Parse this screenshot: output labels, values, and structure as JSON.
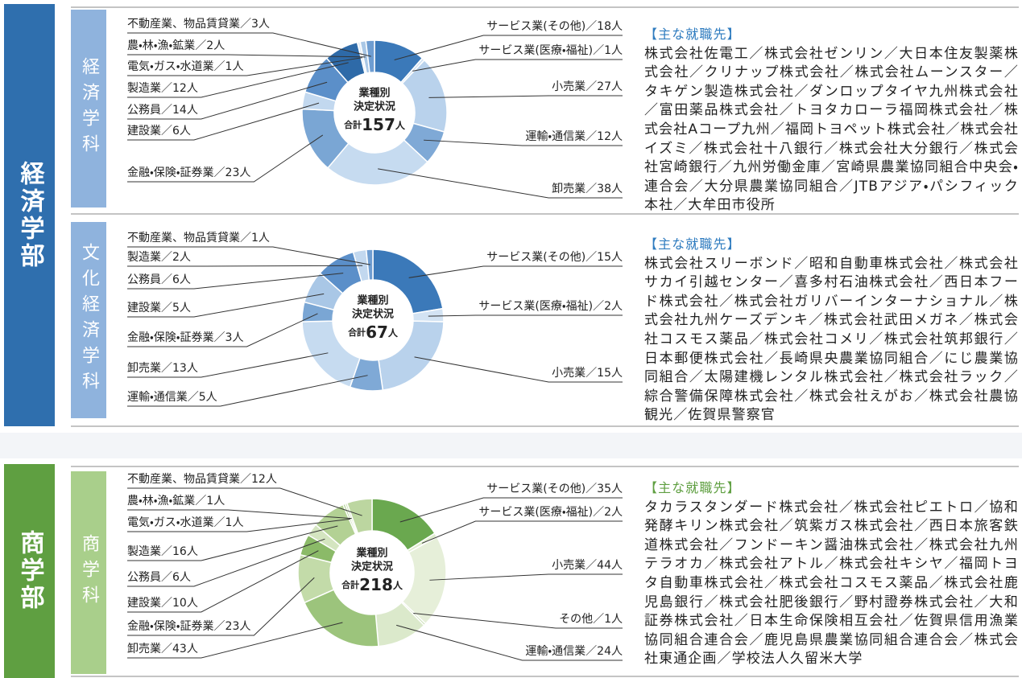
{
  "faculties": [
    {
      "name": "経済学部",
      "departments": [
        {
          "name": "経済学科",
          "chart": {
            "type": "donut",
            "center_title": [
              "業種別",
              "決定状況"
            ],
            "total_prefix": "合計",
            "total": 157,
            "total_unit": "人",
            "categories": [
              "サービス業(その他)",
              "サービス業(医療・福祉)",
              "小売業",
              "運輸・通信業",
              "卸売業",
              "金融・保険・証券業",
              "建設業",
              "公務員",
              "製造業",
              "電気・ガス・水道業",
              "農・林・漁・鉱業",
              "不動産業、物品賃貸業"
            ],
            "values": [
              18,
              1,
              27,
              12,
              38,
              23,
              6,
              14,
              12,
              1,
              2,
              3
            ],
            "value_labels": [
              "／18人",
              "／1人",
              "／27人",
              "／12人",
              "／38人",
              "／23人",
              "／6人",
              "／14人",
              "／12人",
              "／1人",
              "／2人",
              "／3人"
            ],
            "colors": [
              "#3b79b9",
              "#d3e3f3",
              "#b9d2ec",
              "#7fa9d6",
              "#c6dbf0",
              "#7aa6d4",
              "#c2d8ef",
              "#5b8fc9",
              "#2e6aa8",
              "#e3edf7",
              "#a9c7e6",
              "#6e9dd1"
            ]
          },
          "employers_heading": "【主な就職先】",
          "employers": "株式会社佐電工／株式会社ゼンリン／大日本住友製薬株式会社／クリナップ株式会社／株式会社ムーンスター／タキゲン製造株式会社／ダンロップタイヤ九州株式会社／富田薬品株式会社／トヨタカローラ福岡株式会社／株式会社Aコープ九州／福岡トヨペット株式会社／株式会社イズミ／株式会社十八銀行／株式会社大分銀行／株式会社宮崎銀行／九州労働金庫／宮崎県農業協同組合中央会・連合会／大分県農業協同組合／JTBアジア・パシフィック本社／大牟田市役所"
        },
        {
          "name": "文化経済学科",
          "chart": {
            "type": "donut",
            "center_title": [
              "業種別",
              "決定状況"
            ],
            "total_prefix": "合計",
            "total": 67,
            "total_unit": "人",
            "categories": [
              "サービス業(その他)",
              "サービス業(医療・福祉)",
              "小売業",
              "運輸・通信業",
              "卸売業",
              "金融・保険・証券業",
              "建設業",
              "公務員",
              "製造業",
              "不動産業、物品賃貸業"
            ],
            "values": [
              15,
              2,
              15,
              5,
              13,
              3,
              5,
              6,
              2,
              1
            ],
            "value_labels": [
              "／15人",
              "／2人",
              "／15人",
              "／5人",
              "／13人",
              "／3人",
              "／5人",
              "／6人",
              "／2人",
              "／1人"
            ],
            "colors": [
              "#3b79b9",
              "#d3e3f3",
              "#b9d2ec",
              "#7fa9d6",
              "#c6dbf0",
              "#7aa6d4",
              "#a9c7e6",
              "#5b8fc9",
              "#c2d8ef",
              "#6e9dd1"
            ]
          },
          "employers_heading": "【主な就職先】",
          "employers": "株式会社スリーボンド／昭和自動車株式会社／株式会社サカイ引越センター／喜多村石油株式会社／西日本フード株式会社／株式会社ガリバーインターナショナル／株式会社九州ケーズデンキ／株式会社武田メガネ／株式会社コスモス薬品／株式会社コメリ／株式会社筑邦銀行／日本郵便株式会社／長崎県央農業協同組合／にじ農業協同組合／太陽建機レンタル株式会社／株式会社ラック／綜合警備保障株式会社／株式会社えがお／株式会社農協観光／佐賀県警察官"
        }
      ]
    },
    {
      "name": "商学部",
      "departments": [
        {
          "name": "商学科",
          "chart": {
            "type": "donut",
            "center_title": [
              "業種別",
              "決定状況"
            ],
            "total_prefix": "合計",
            "total": 218,
            "total_unit": "人",
            "categories": [
              "サービス業(その他)",
              "サービス業(医療・福祉)",
              "小売業",
              "その他",
              "運輸・通信業",
              "卸売業",
              "金融・保険・証券業",
              "建設業",
              "公務員",
              "製造業",
              "電気・ガス・水道業",
              "農・林・漁・鉱業",
              "不動産業、物品賃貸業"
            ],
            "values": [
              35,
              2,
              44,
              1,
              24,
              43,
              23,
              10,
              6,
              16,
              1,
              1,
              12
            ],
            "value_labels": [
              "／35人",
              "／2人",
              "／44人",
              "／1人",
              "／24人",
              "／43人",
              "／23人",
              "／10人",
              "／6人",
              "／16人",
              "／1人",
              "／1人",
              "／12人"
            ],
            "colors": [
              "#6aa84f",
              "#dfeccf",
              "#e6efd9",
              "#c9deb4",
              "#dbe9cb",
              "#9cc47c",
              "#c3dba9",
              "#8bba68",
              "#d4e5c0",
              "#b3d194",
              "#a8ca88",
              "#cfe2b9",
              "#bcd6a0"
            ]
          },
          "employers_heading": "【主な就職先】",
          "employers": "タカラスタンダード株式会社／株式会社ピエトロ／協和発酵キリン株式会社／筑紫ガス株式会社／西日本旅客鉄道株式会社／フンドーキン醤油株式会社／株式会社九州テラオカ／株式会社アトル／株式会社キシヤ／福岡トヨタ自動車株式会社／株式会社コスモス薬品／株式会社鹿児島銀行／株式会社肥後銀行／野村證券株式会社／大和証券株式会社／日本生命保険相互会社／佐賀県信用漁業協同組合連合会／鹿児島県農業協同組合連合会／株式会社東通企画／学校法人久留米大学"
        }
      ]
    }
  ]
}
